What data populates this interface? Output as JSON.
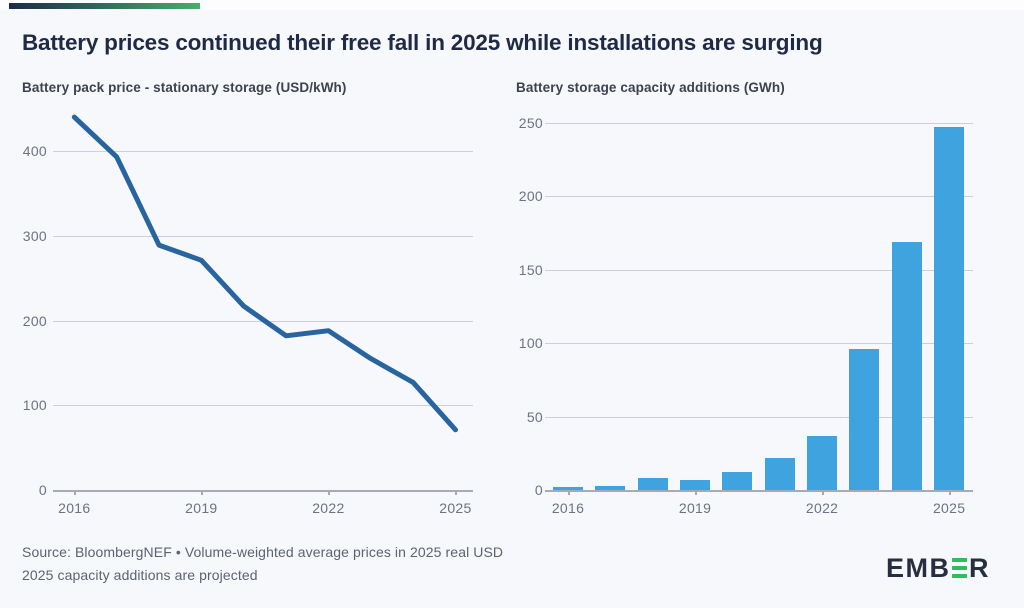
{
  "page": {
    "title": "Battery prices continued their free fall in 2025 while installations are surging",
    "source_line1": "Source: BloombergNEF • Volume-weighted average prices in 2025 real USD",
    "source_line2": "2025 capacity additions are projected",
    "logo": {
      "prefix": "EMB",
      "suffix": "R",
      "icon": "green-triple-bar-e"
    }
  },
  "colors": {
    "background": "#f7f8fb",
    "accent_gradient_start": "#1c2b49",
    "accent_gradient_end": "#47ae6c",
    "title_text": "#1f2a45",
    "subtitle_text": "#3c4250",
    "axis_label": "#6b7280",
    "gridline": "#cbcfd8",
    "axis_line": "#a4aab6",
    "line_series": "#28649f",
    "bar_series": "#3ea3de",
    "footer_text": "#5c6270",
    "logo_dark": "#272e3e",
    "logo_green": "#2fbe5f"
  },
  "chart_data": [
    {
      "type": "line",
      "title": "Battery pack price - stationary storage (USD/kWh)",
      "x": [
        2016,
        2017,
        2018,
        2019,
        2020,
        2021,
        2022,
        2023,
        2024,
        2025
      ],
      "values": [
        440,
        393,
        289,
        271,
        217,
        182,
        188,
        155,
        127,
        71
      ],
      "ylim": [
        0,
        450
      ],
      "yticks": [
        0,
        100,
        200,
        300,
        400
      ],
      "xtick_labels": [
        "2016",
        "2019",
        "2022",
        "2025"
      ],
      "grid": true,
      "legend": "none",
      "line_color": "#28649f"
    },
    {
      "type": "bar",
      "title": "Battery storage capacity additions (GWh)",
      "categories": [
        2016,
        2017,
        2018,
        2019,
        2020,
        2021,
        2022,
        2023,
        2024,
        2025
      ],
      "values": [
        2,
        3,
        8,
        7,
        12,
        22,
        37,
        96,
        169,
        247
      ],
      "ylim": [
        0,
        250
      ],
      "yticks": [
        0,
        50,
        100,
        150,
        200,
        250
      ],
      "xtick_labels": [
        "2016",
        "2019",
        "2022",
        "2025"
      ],
      "grid": true,
      "legend": "none",
      "bar_color": "#3ea3de"
    }
  ]
}
